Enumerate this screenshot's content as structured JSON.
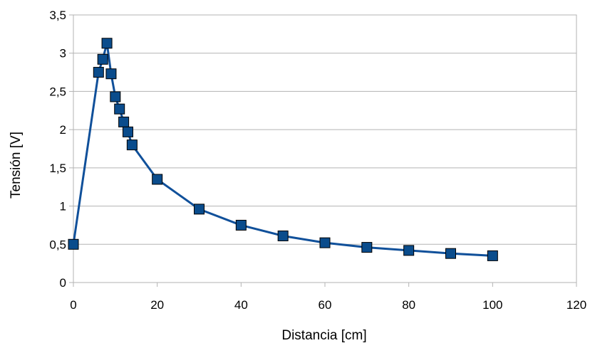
{
  "chart_data": {
    "type": "line",
    "title": "",
    "xlabel": "Distancia [cm]",
    "ylabel": "Tensión [V]",
    "xlim": [
      0,
      120
    ],
    "ylim": [
      0,
      3.5
    ],
    "x_ticks": [
      0,
      20,
      40,
      60,
      80,
      100,
      120
    ],
    "x_tick_labels": [
      "0",
      "20",
      "40",
      "60",
      "80",
      "100",
      "120"
    ],
    "y_ticks": [
      0,
      0.5,
      1,
      1.5,
      2,
      2.5,
      3,
      3.5
    ],
    "y_tick_labels": [
      "0",
      "0,5",
      "1",
      "1,5",
      "2",
      "2,5",
      "3",
      "3,5"
    ],
    "grid": "horizontal",
    "legend": "none",
    "series": [
      {
        "marker": "square",
        "color": "#0a4c8c",
        "line_color": "#10509a",
        "points": [
          {
            "x": 0,
            "y": 0.5
          },
          {
            "x": 6,
            "y": 2.75
          },
          {
            "x": 7,
            "y": 2.92
          },
          {
            "x": 8,
            "y": 3.13
          },
          {
            "x": 9,
            "y": 2.73
          },
          {
            "x": 10,
            "y": 2.43
          },
          {
            "x": 11,
            "y": 2.27
          },
          {
            "x": 12,
            "y": 2.1
          },
          {
            "x": 13,
            "y": 1.97
          },
          {
            "x": 14,
            "y": 1.8
          },
          {
            "x": 20,
            "y": 1.35
          },
          {
            "x": 30,
            "y": 0.96
          },
          {
            "x": 40,
            "y": 0.75
          },
          {
            "x": 50,
            "y": 0.61
          },
          {
            "x": 60,
            "y": 0.52
          },
          {
            "x": 70,
            "y": 0.46
          },
          {
            "x": 80,
            "y": 0.42
          },
          {
            "x": 90,
            "y": 0.38
          },
          {
            "x": 100,
            "y": 0.35
          }
        ]
      }
    ]
  }
}
